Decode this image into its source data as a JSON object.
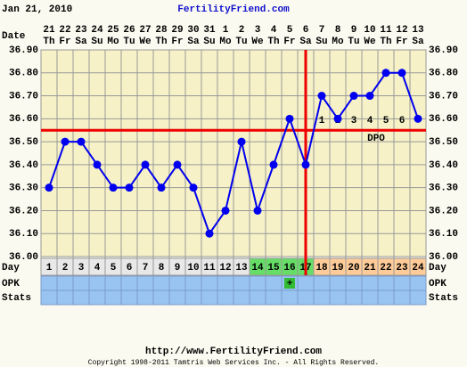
{
  "header": {
    "date": "Jan 21, 2010",
    "site": "FertilityFriend.com"
  },
  "footer": {
    "url": "http://www.FertilityFriend.com",
    "copyright": "Copyright 1998-2011 Tamtris Web Services Inc. - All Rights Reserved."
  },
  "chart_data": {
    "type": "line",
    "row_labels": {
      "date": "Date",
      "day": "Day",
      "opk": "OPK",
      "stats": "Stats"
    },
    "categories": [
      "1",
      "2",
      "3",
      "4",
      "5",
      "6",
      "7",
      "8",
      "9",
      "10",
      "11",
      "12",
      "13",
      "14",
      "15",
      "16",
      "17",
      "18",
      "19",
      "20",
      "21",
      "22",
      "23",
      "24"
    ],
    "dates": [
      "21",
      "22",
      "23",
      "24",
      "25",
      "26",
      "27",
      "28",
      "29",
      "30",
      "31",
      "1",
      "2",
      "3",
      "4",
      "5",
      "6",
      "7",
      "8",
      "9",
      "10",
      "11",
      "12",
      "13"
    ],
    "weekdays": [
      "Th",
      "Fr",
      "Sa",
      "Su",
      "Mo",
      "Tu",
      "We",
      "Th",
      "Fr",
      "Sa",
      "Su",
      "Mo",
      "Tu",
      "We",
      "Th",
      "Fr",
      "Sa",
      "Su",
      "Mo",
      "Tu",
      "We",
      "Th",
      "Fr",
      "Sa"
    ],
    "values": [
      36.3,
      36.5,
      36.5,
      36.4,
      36.3,
      36.3,
      36.4,
      36.3,
      36.4,
      36.3,
      36.1,
      36.2,
      36.5,
      36.2,
      36.4,
      36.6,
      36.4,
      36.7,
      36.6,
      36.7,
      36.7,
      36.8,
      36.8,
      36.6
    ],
    "color": "#0000ee",
    "ylim": [
      36.0,
      36.9
    ],
    "yticks": [
      {
        "value": 36.0,
        "label": "36.00"
      },
      {
        "value": 36.1,
        "label": "36.10"
      },
      {
        "value": 36.2,
        "label": "36.20"
      },
      {
        "value": 36.3,
        "label": "36.30"
      },
      {
        "value": 36.4,
        "label": "36.40"
      },
      {
        "value": 36.5,
        "label": "36.50"
      },
      {
        "value": 36.6,
        "label": "36.60"
      },
      {
        "value": 36.7,
        "label": "36.70"
      },
      {
        "value": 36.8,
        "label": "36.80"
      },
      {
        "value": 36.9,
        "label": "36.90"
      }
    ],
    "grid": true,
    "coverline": 36.55,
    "ovulation_day": 17,
    "marker_color": "#ee0000",
    "dpo_label": "DPO",
    "dpo": [
      null,
      null,
      null,
      null,
      null,
      null,
      null,
      null,
      null,
      null,
      null,
      null,
      null,
      null,
      null,
      null,
      null,
      "1",
      "2",
      "3",
      "4",
      "5",
      "6",
      null
    ],
    "day_colors": [
      "#e8e8e8",
      "#e8e8e8",
      "#e8e8e8",
      "#e8e8e8",
      "#e8e8e8",
      "#e8e8e8",
      "#e8e8e8",
      "#e8e8e8",
      "#e8e8e8",
      "#e8e8e8",
      "#e8e8e8",
      "#e8e8e8",
      "#e8e8e8",
      "#66dd66",
      "#66dd66",
      "#66dd66",
      "#66dd66",
      "#ffcc99",
      "#ffcc99",
      "#ffcc99",
      "#ffcc99",
      "#ffcc99",
      "#ffcc99",
      "#ffcc99"
    ],
    "opk": [
      null,
      null,
      null,
      null,
      null,
      null,
      null,
      null,
      null,
      null,
      null,
      null,
      null,
      null,
      null,
      "+",
      null,
      null,
      null,
      null,
      null,
      null,
      null,
      null
    ],
    "row_color": "#99c4f2"
  }
}
